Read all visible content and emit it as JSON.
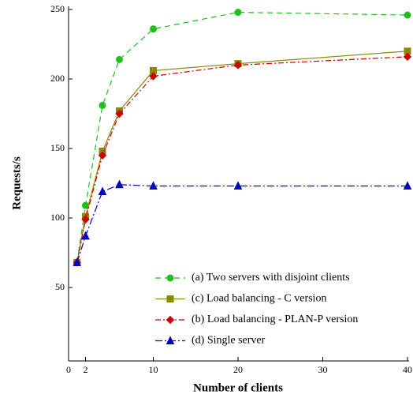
{
  "chart_data": {
    "type": "line",
    "xlabel": "Number of clients",
    "ylabel": "Requests/s",
    "x": [
      1,
      2,
      4,
      6,
      10,
      20,
      40
    ],
    "series": [
      {
        "name": "(a) Two servers with disjoint clients",
        "color": "#1fbf1f",
        "marker": "circle",
        "dash": "7,5",
        "values": [
          68,
          109,
          181,
          214,
          236,
          248,
          246
        ]
      },
      {
        "name": "(c) Load balancing - C version",
        "color": "#8a8a00",
        "marker": "square",
        "dash": "none",
        "values": [
          68,
          101,
          148,
          177,
          206,
          211,
          220
        ]
      },
      {
        "name": "(b) Load balancing - PLAN-P version",
        "color": "#cc0000",
        "marker": "diamond",
        "dash": "7,3,2,3",
        "values": [
          68,
          99,
          145,
          175,
          202,
          210,
          216
        ]
      },
      {
        "name": "(d) Single server",
        "color": "#0000c0",
        "marker": "triangle",
        "dash": "9,3,2,3",
        "values": [
          68,
          87,
          119,
          124,
          123,
          123,
          123
        ]
      }
    ],
    "xlim": [
      0,
      40
    ],
    "xticks": [
      0,
      2,
      10,
      20,
      30,
      40
    ],
    "ylim": [
      0,
      250
    ],
    "yticks": [
      50,
      100,
      150,
      200,
      250
    ],
    "legend": "lower right"
  }
}
